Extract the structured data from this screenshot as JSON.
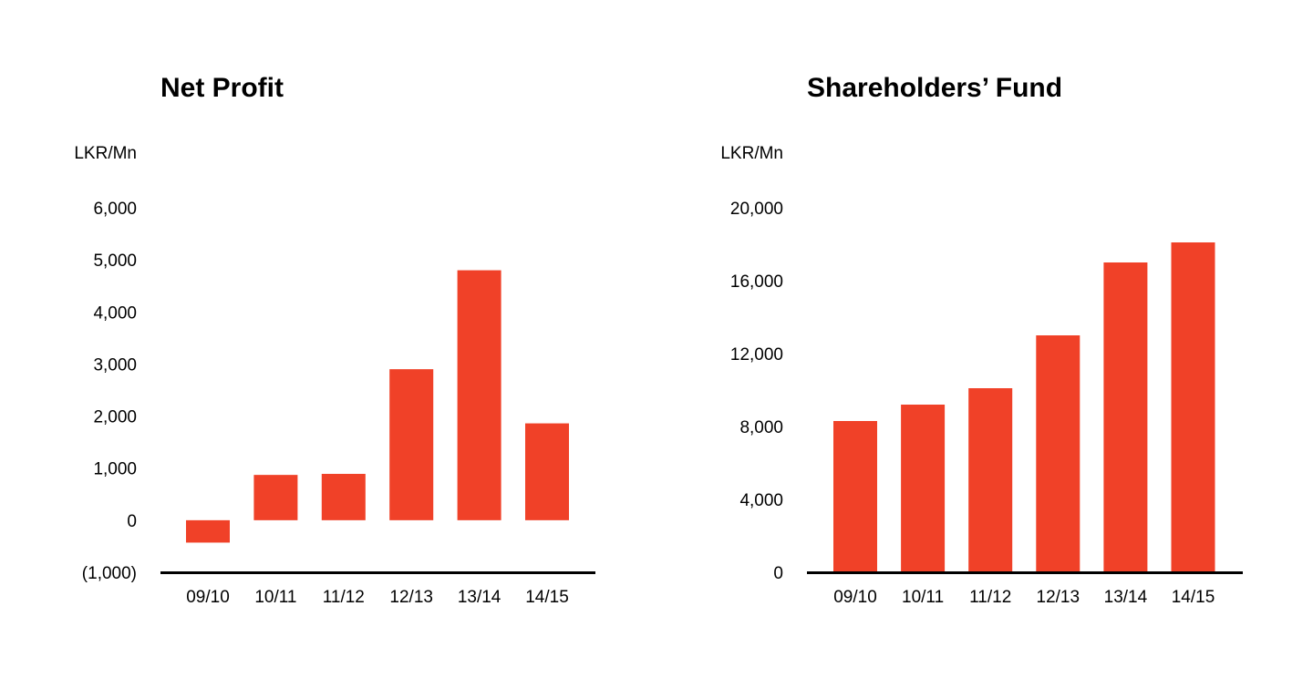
{
  "chart_data": [
    {
      "type": "bar",
      "title": "Net Profit",
      "ylabel": "LKR/Mn",
      "xlabel": "",
      "categories": [
        "09/10",
        "10/11",
        "11/12",
        "12/13",
        "13/14",
        "14/15"
      ],
      "values": [
        -430,
        870,
        890,
        2900,
        4800,
        1860
      ],
      "ylim": [
        -1000,
        6000
      ],
      "yticks": [
        -1000,
        0,
        1000,
        2000,
        3000,
        4000,
        5000,
        6000
      ],
      "ytick_labels": [
        "(1,000)",
        "0",
        "1,000",
        "2,000",
        "3,000",
        "4,000",
        "5,000",
        "6,000"
      ],
      "bar_color": "#f04128",
      "grid": false,
      "legend": "none"
    },
    {
      "type": "bar",
      "title": "Shareholders’ Fund",
      "ylabel": "LKR/Mn",
      "xlabel": "",
      "categories": [
        "09/10",
        "10/11",
        "11/12",
        "12/13",
        "13/14",
        "14/15"
      ],
      "values": [
        8300,
        9200,
        10100,
        13000,
        17000,
        18100
      ],
      "ylim": [
        0,
        20000
      ],
      "yticks": [
        0,
        4000,
        8000,
        12000,
        16000,
        20000
      ],
      "ytick_labels": [
        "0",
        "4,000",
        "8,000",
        "12,000",
        "16,000",
        "20,000"
      ],
      "bar_color": "#f04128",
      "grid": false,
      "legend": "none"
    }
  ]
}
